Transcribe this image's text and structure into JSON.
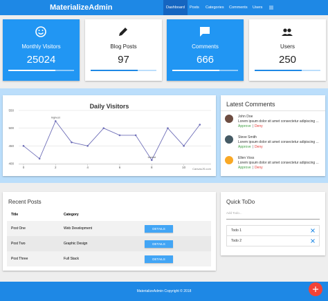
{
  "navbar": {
    "brand": "MaterializeAdmin",
    "items": [
      "Dashboard",
      "Posts",
      "Categories",
      "Comments",
      "Users"
    ]
  },
  "stats": [
    {
      "label": "Monthly Visitors",
      "value": 25024
    },
    {
      "label": "Blog Posts",
      "value": 97
    },
    {
      "label": "Comments",
      "value": 666
    },
    {
      "label": "Users",
      "value": 250
    }
  ],
  "chart_data": {
    "type": "line",
    "title": "Daily Visitors",
    "x": [
      0,
      1,
      2,
      3,
      4,
      5,
      6,
      7,
      8,
      9,
      10,
      11
    ],
    "series": [
      {
        "color": "#6f6fb8",
        "values": [
          450,
          414,
          520,
          460,
          450,
          500,
          480,
          480,
          410,
          500,
          450,
          510
        ],
        "index_labels": [
          null,
          null,
          "highest",
          null,
          null,
          null,
          null,
          null,
          "lowest",
          null,
          null,
          null
        ]
      }
    ],
    "xlim": [
      -0.3,
      11.7
    ],
    "ylim": [
      398,
      550
    ],
    "xticks": [
      0,
      2,
      4,
      6,
      8,
      10
    ],
    "yticks": [
      400,
      450,
      500,
      550
    ],
    "grid": true,
    "credit": "CanvasJS.com"
  },
  "comments": {
    "title": "Latest Comments",
    "approve": "Approve",
    "separator": "|",
    "deny": "Deny",
    "items": [
      {
        "name": "John Doe",
        "text": "Lorem ipsum dolor sit amet consectetur adipiscing ..."
      },
      {
        "name": "Steve Smith",
        "text": "Lorem ipsum dolor sit amet consectetur adipiscing ..."
      },
      {
        "name": "Ellen Voss",
        "text": "Lorem ipsum dolor sit amet consectetur adipiscing ..."
      }
    ]
  },
  "recent_posts": {
    "title": "Recent Posts",
    "headers": [
      "Title",
      "Category"
    ],
    "button": "DETAILS",
    "rows": [
      [
        "Post One",
        "Web Development"
      ],
      [
        "Post Two",
        "Graphic Design"
      ],
      [
        "Post Three",
        "Full Stack"
      ]
    ]
  },
  "todo": {
    "title": "Quick ToDo",
    "placeholder": "Add Todo...",
    "items": [
      "Todo 1",
      "Todo 2"
    ]
  },
  "footer": {
    "copyright": "MaterializeAdmin Copyright © 2018"
  }
}
